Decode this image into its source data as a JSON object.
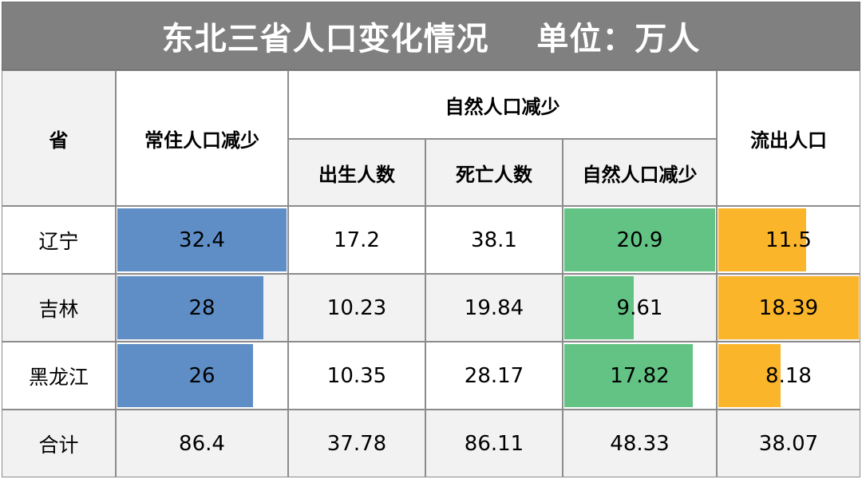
{
  "title": "东北三省人口变化情况",
  "unit": "单位：万人",
  "headers": {
    "province": "省",
    "resident_decrease": "常住人口减少",
    "natural_group": "自然人口减少",
    "births": "出生人数",
    "deaths": "死亡人数",
    "natural_decrease": "自然人口减少",
    "outflow": "流出人口"
  },
  "colors": {
    "resident_bar": "#5f8ec6",
    "natural_bar": "#62c384",
    "outflow_bar": "#fbb52b",
    "title_bg": "#808080"
  },
  "chart_data": {
    "type": "table",
    "title": "东北三省人口变化情况",
    "unit": "万人",
    "columns": [
      "省",
      "常住人口减少",
      "出生人数",
      "死亡人数",
      "自然人口减少",
      "流出人口"
    ],
    "rows": [
      {
        "province": "辽宁",
        "resident_decrease": "32.4",
        "births": "17.2",
        "deaths": "38.1",
        "natural_decrease": "20.9",
        "outflow": "11.5"
      },
      {
        "province": "吉林",
        "resident_decrease": "28",
        "births": "10.23",
        "deaths": "19.84",
        "natural_decrease": "9.61",
        "outflow": "18.39"
      },
      {
        "province": "黑龙江",
        "resident_decrease": "26",
        "births": "10.35",
        "deaths": "28.17",
        "natural_decrease": "17.82",
        "outflow": "8.18"
      }
    ],
    "total": {
      "province": "合计",
      "resident_decrease": "86.4",
      "births": "37.78",
      "deaths": "86.11",
      "natural_decrease": "48.33",
      "outflow": "38.07"
    },
    "data_bars": {
      "resident_decrease": {
        "max": 32.4
      },
      "natural_decrease": {
        "max": 20.9
      },
      "outflow": {
        "max": 18.39
      }
    }
  }
}
